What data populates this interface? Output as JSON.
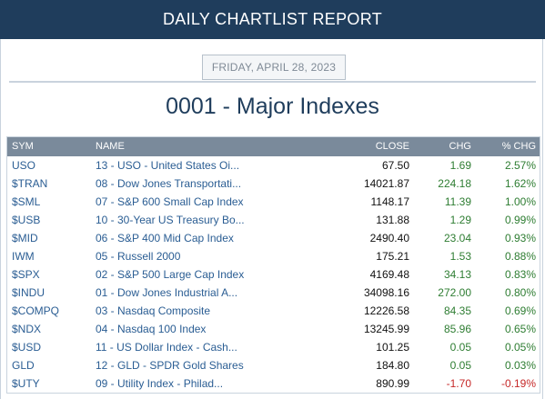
{
  "header": {
    "title": "DAILY CHARTLIST REPORT"
  },
  "report": {
    "date": "FRIDAY, APRIL 28, 2023",
    "title": "0001 - Major Indexes"
  },
  "table": {
    "columns": [
      "SYM",
      "NAME",
      "CLOSE",
      "CHG",
      "% CHG"
    ],
    "rows": [
      {
        "sym": "USO",
        "name": "13 - USO - United States Oi...",
        "close": "67.50",
        "chg": "1.69",
        "pct": "2.57%",
        "dir": "pos"
      },
      {
        "sym": "$TRAN",
        "name": "08 - Dow Jones Transportati...",
        "close": "14021.87",
        "chg": "224.18",
        "pct": "1.62%",
        "dir": "pos"
      },
      {
        "sym": "$SML",
        "name": "07 - S&P 600 Small Cap Index",
        "close": "1148.17",
        "chg": "11.39",
        "pct": "1.00%",
        "dir": "pos"
      },
      {
        "sym": "$USB",
        "name": "10 - 30-Year US Treasury Bo...",
        "close": "131.88",
        "chg": "1.29",
        "pct": "0.99%",
        "dir": "pos"
      },
      {
        "sym": "$MID",
        "name": "06 - S&P 400 Mid Cap Index",
        "close": "2490.40",
        "chg": "23.04",
        "pct": "0.93%",
        "dir": "pos"
      },
      {
        "sym": "IWM",
        "name": "05 - Russell 2000",
        "close": "175.21",
        "chg": "1.53",
        "pct": "0.88%",
        "dir": "pos"
      },
      {
        "sym": "$SPX",
        "name": "02 - S&P 500 Large Cap Index",
        "close": "4169.48",
        "chg": "34.13",
        "pct": "0.83%",
        "dir": "pos"
      },
      {
        "sym": "$INDU",
        "name": "01 - Dow Jones Industrial A...",
        "close": "34098.16",
        "chg": "272.00",
        "pct": "0.80%",
        "dir": "pos"
      },
      {
        "sym": "$COMPQ",
        "name": "03 - Nasdaq Composite",
        "close": "12226.58",
        "chg": "84.35",
        "pct": "0.69%",
        "dir": "pos"
      },
      {
        "sym": "$NDX",
        "name": "04 - Nasdaq 100 Index",
        "close": "13245.99",
        "chg": "85.96",
        "pct": "0.65%",
        "dir": "pos"
      },
      {
        "sym": "$USD",
        "name": "11 - US Dollar Index - Cash...",
        "close": "101.25",
        "chg": "0.05",
        "pct": "0.05%",
        "dir": "pos"
      },
      {
        "sym": "GLD",
        "name": "12 - GLD - SPDR Gold Shares",
        "close": "184.80",
        "chg": "0.05",
        "pct": "0.03%",
        "dir": "pos"
      },
      {
        "sym": "$UTY",
        "name": "09 - Utility Index - Philad...",
        "close": "890.99",
        "chg": "-1.70",
        "pct": "-0.19%",
        "dir": "neg"
      }
    ]
  },
  "colors": {
    "header_bg": "#1f3d5c",
    "table_header_bg": "#7a8a9b",
    "link": "#2a5d93",
    "positive": "#2e7d32",
    "negative": "#c62828"
  }
}
